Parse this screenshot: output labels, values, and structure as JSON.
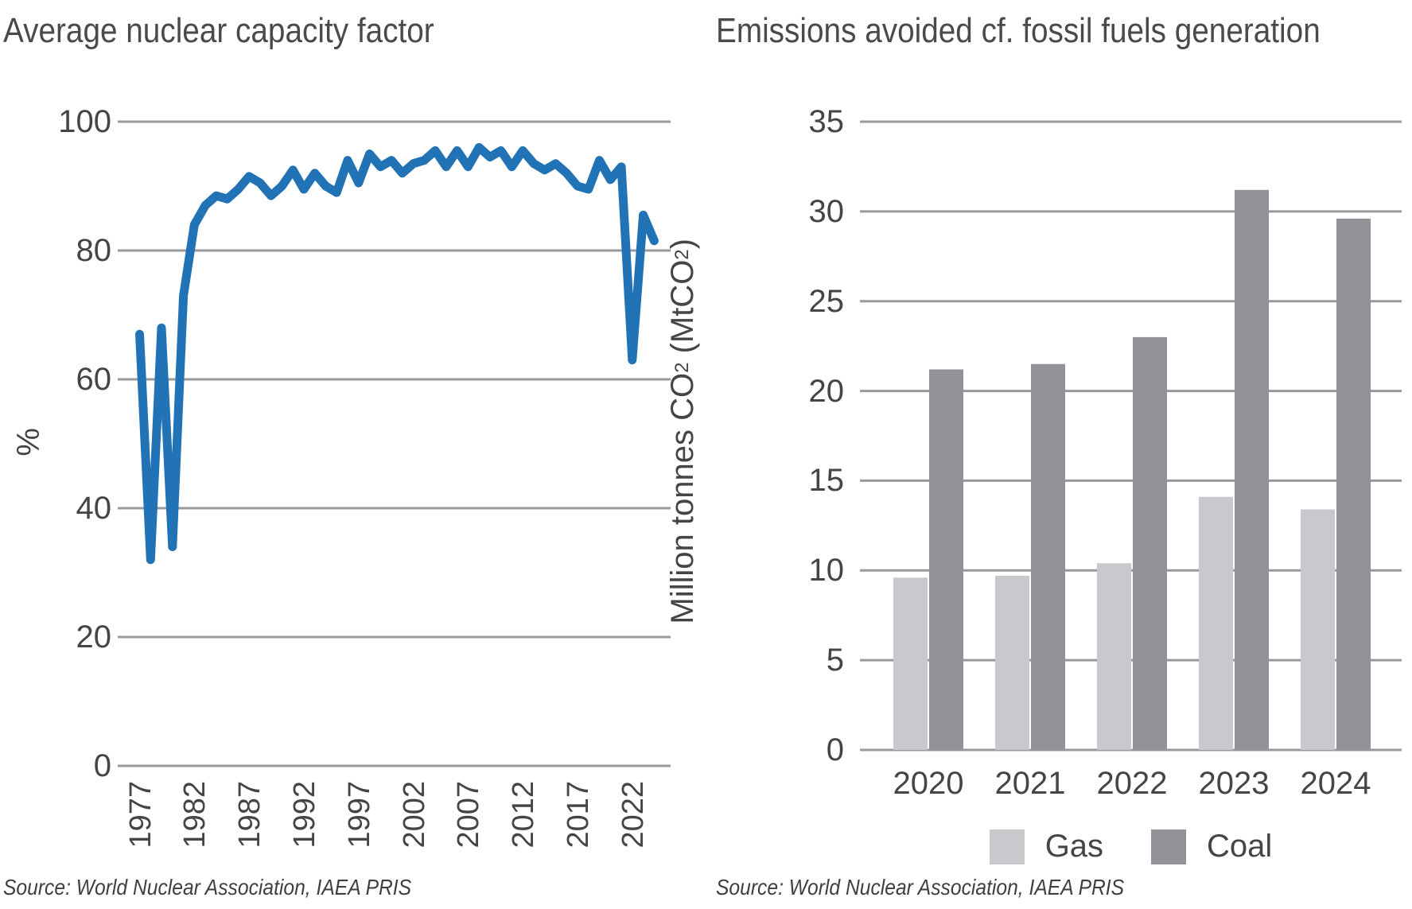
{
  "page": {
    "background": "#ffffff",
    "text_color": "#454545"
  },
  "chart_data": [
    {
      "type": "line",
      "title": "Average nuclear capacity factor",
      "ylabel": "%",
      "source": "Source: World Nuclear Association, IAEA PRIS",
      "line_color": "#2173b6",
      "grid": true,
      "gridline_color": "#9a9a9a",
      "ylim": [
        0,
        100
      ],
      "yticks": [
        0,
        20,
        40,
        60,
        80,
        100
      ],
      "xticks": [
        1977,
        1982,
        1987,
        1992,
        1997,
        2002,
        2007,
        2012,
        2017,
        2022
      ],
      "x": [
        1977,
        1978,
        1979,
        1980,
        1981,
        1982,
        1983,
        1984,
        1985,
        1986,
        1987,
        1988,
        1989,
        1990,
        1991,
        1992,
        1993,
        1994,
        1995,
        1996,
        1997,
        1998,
        1999,
        2000,
        2001,
        2002,
        2003,
        2004,
        2005,
        2006,
        2007,
        2008,
        2009,
        2010,
        2011,
        2012,
        2013,
        2014,
        2015,
        2016,
        2017,
        2018,
        2019,
        2020,
        2021,
        2022,
        2023,
        2024
      ],
      "values": [
        67,
        32,
        68,
        34,
        73,
        84,
        87,
        88.5,
        88,
        89.5,
        91.5,
        90.5,
        88.5,
        90,
        92.5,
        89.5,
        92,
        90,
        89,
        94,
        90.5,
        95,
        93,
        94,
        92,
        93.5,
        94,
        95.5,
        93,
        95.5,
        93,
        96,
        94.5,
        95.5,
        93,
        95.5,
        93.5,
        92.5,
        93.5,
        92,
        90,
        89.5,
        94,
        91,
        93,
        63,
        85.5,
        81.5
      ]
    },
    {
      "type": "bar",
      "title": "Emissions avoided cf. fossil fuels generation",
      "ylabel_text": "Million tonnes CO2 (MtCO2)",
      "ylabel_parts": [
        {
          "t": "Million tonnes CO"
        },
        {
          "t": "2",
          "sub": true
        },
        {
          "t": " (MtCO"
        },
        {
          "t": "2",
          "sub": true
        },
        {
          "t": ")"
        }
      ],
      "source": "Source: World Nuclear Association, IAEA PRIS",
      "grid": true,
      "gridline_color": "#9a9a9a",
      "ylim": [
        0,
        35
      ],
      "yticks": [
        0,
        5,
        10,
        15,
        20,
        25,
        30,
        35
      ],
      "categories": [
        "2020",
        "2021",
        "2022",
        "2023",
        "2024"
      ],
      "series": [
        {
          "name": "Gas",
          "color": "#c8c9cd",
          "values": [
            9.6,
            9.7,
            10.4,
            14.1,
            13.4
          ]
        },
        {
          "name": "Coal",
          "color": "#929399",
          "values": [
            21.2,
            21.5,
            23.0,
            31.2,
            29.6
          ]
        }
      ],
      "legend_position": "bottom"
    }
  ]
}
